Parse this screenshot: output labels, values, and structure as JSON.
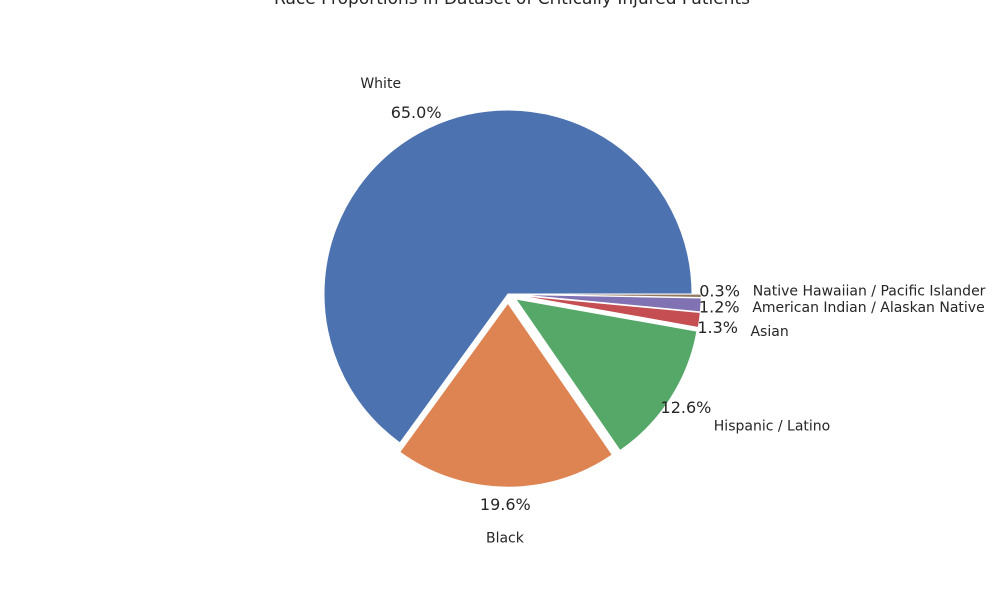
{
  "chart_data": {
    "type": "pie",
    "title": "Race Proportions in Dataset of Critically Injured Patients",
    "start_angle_deg": 0,
    "direction": "counterclockwise",
    "slices": [
      {
        "label": "White",
        "value": 65.0,
        "pct_text": "65.0%",
        "color": "#4c72b0",
        "explode": 0.0
      },
      {
        "label": "Black",
        "value": 19.6,
        "pct_text": "19.6%",
        "color": "#dd8452",
        "explode": 0.05
      },
      {
        "label": "Hispanic / Latino",
        "value": 12.6,
        "pct_text": "12.6%",
        "color": "#55a868",
        "explode": 0.05
      },
      {
        "label": "Asian",
        "value": 1.3,
        "pct_text": "1.3%",
        "color": "#c44e52",
        "explode": 0.05
      },
      {
        "label": "American Indian / Alaskan Native",
        "value": 1.2,
        "pct_text": "1.2%",
        "color": "#8172b3",
        "explode": 0.05
      },
      {
        "label": "Native Hawaiian / Pacific Islander",
        "value": 0.3,
        "pct_text": "0.3%",
        "color": "#937860",
        "explode": 0.05
      }
    ]
  }
}
